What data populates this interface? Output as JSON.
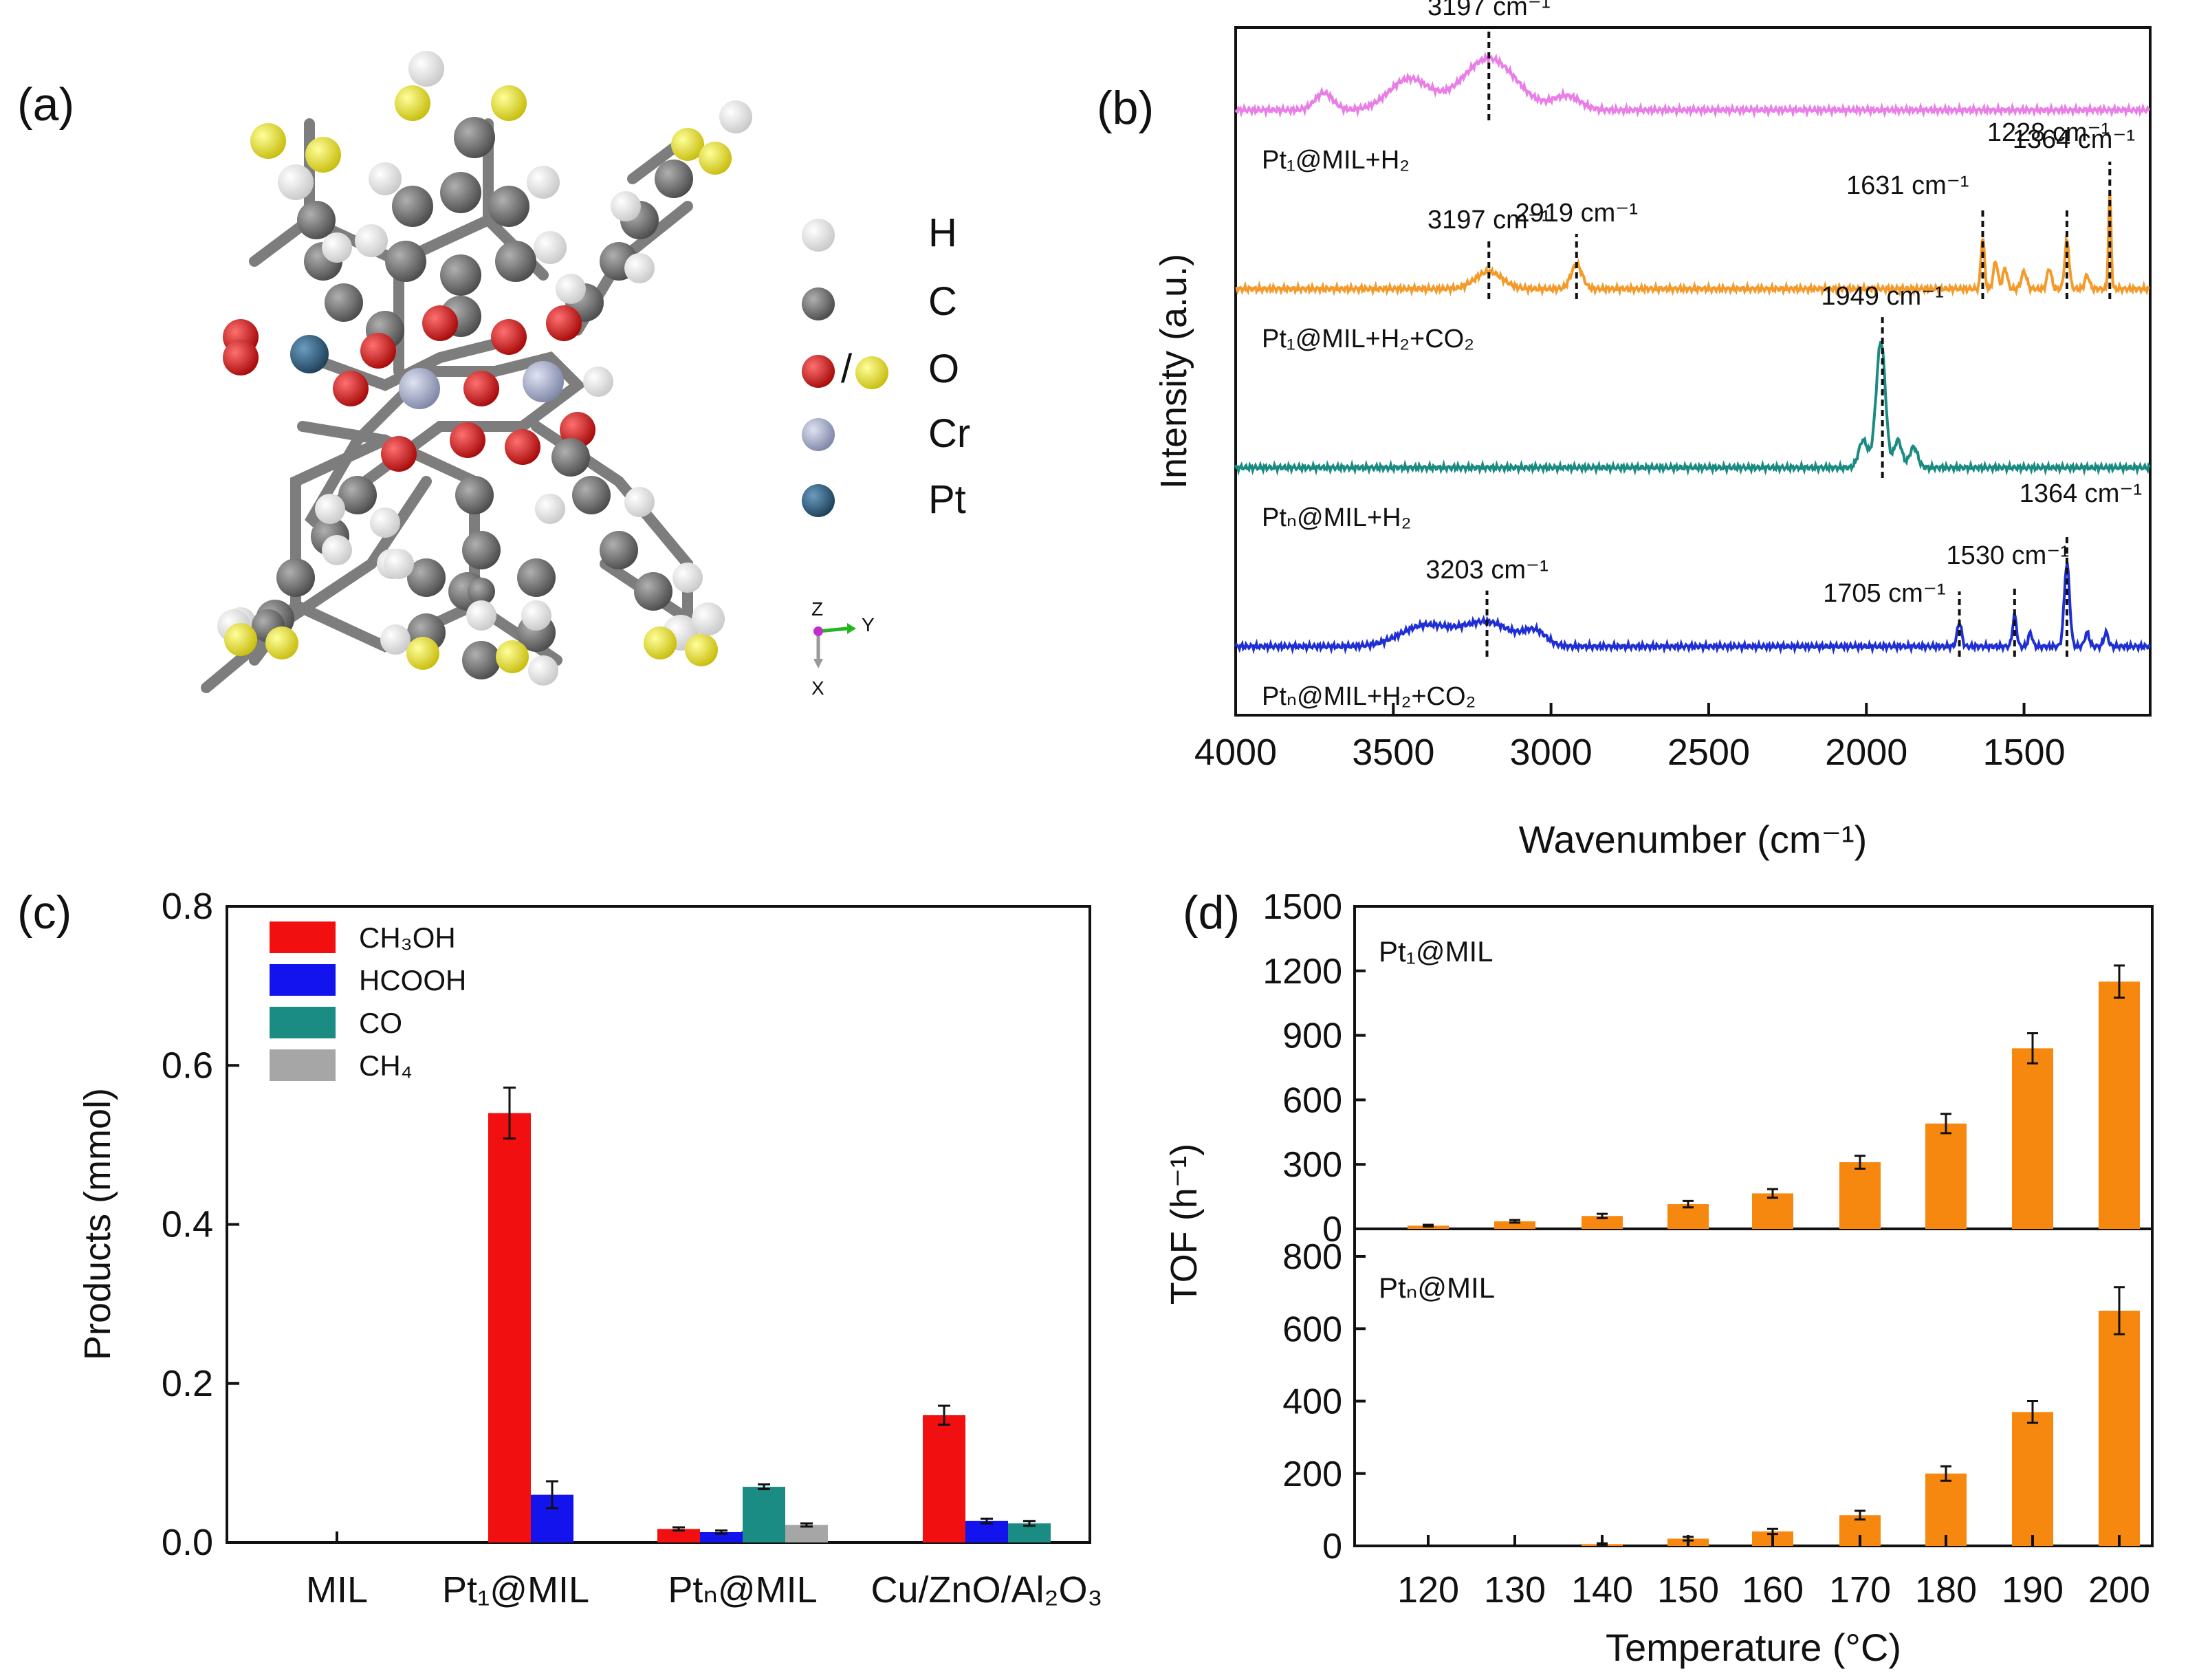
{
  "panels": {
    "a": {
      "letter": "(a)",
      "legend": [
        {
          "label": "H",
          "color": "#f2f2f2"
        },
        {
          "label": "C",
          "color": "#7a7a7a"
        },
        {
          "label": "O",
          "color": "#e3161b",
          "color2": "#f2e821",
          "sep": "/"
        },
        {
          "label": "Cr",
          "color": "#a7aec9"
        },
        {
          "label": "Pt",
          "color": "#2a5a7c"
        }
      ],
      "axes": {
        "z": "Z",
        "y": "Y",
        "x": "X"
      }
    },
    "b": {
      "letter": "(b)"
    },
    "c": {
      "letter": "(c)"
    },
    "d": {
      "letter": "(d)"
    }
  },
  "chart_data": [
    {
      "id": "b",
      "type": "line",
      "xlabel": "Wavenumber (cm⁻¹)",
      "ylabel": "Intensity (a.u.)",
      "xlim": [
        4000,
        1100
      ],
      "xticks": [
        4000,
        3500,
        3000,
        2500,
        2000,
        1500
      ],
      "series": [
        {
          "name": "Pt₁@MIL+H₂",
          "color": "#e87ee6",
          "offset": 0.88,
          "peaks": [
            [
              3720,
              0.025,
              40
            ],
            [
              3450,
              0.045,
              90
            ],
            [
              3197,
              0.075,
              120
            ],
            [
              2950,
              0.02,
              60
            ]
          ],
          "annotations": [
            {
              "x": 3197,
              "label": "3197 cm⁻¹"
            }
          ]
        },
        {
          "name": "Pt₁@MIL+H₂+CO₂",
          "color": "#f39a2a",
          "offset": 0.62,
          "peaks": [
            [
              3197,
              0.025,
              60
            ],
            [
              2919,
              0.035,
              25
            ],
            [
              1631,
              0.075,
              8
            ],
            [
              1590,
              0.04,
              10
            ],
            [
              1560,
              0.03,
              10
            ],
            [
              1500,
              0.025,
              12
            ],
            [
              1420,
              0.03,
              10
            ],
            [
              1364,
              0.07,
              10
            ],
            [
              1300,
              0.02,
              10
            ],
            [
              1228,
              0.14,
              6
            ]
          ],
          "annotations": [
            {
              "x": 3197,
              "label": "3197 cm⁻¹"
            },
            {
              "x": 2919,
              "label": "2919 cm⁻¹"
            },
            {
              "x": 1631,
              "label": "1631 cm⁻¹"
            },
            {
              "x": 1364,
              "label": "1364 cm⁻¹"
            },
            {
              "x": 1228,
              "label": "1228 cm⁻¹"
            }
          ]
        },
        {
          "name": "Ptₙ@MIL+H₂",
          "color": "#1a8b82",
          "offset": 0.36,
          "peaks": [
            [
              2010,
              0.04,
              20
            ],
            [
              1960,
              0.1,
              20
            ],
            [
              1949,
              0.1,
              18
            ],
            [
              1900,
              0.04,
              18
            ],
            [
              1850,
              0.03,
              18
            ]
          ],
          "annotations": [
            {
              "x": 1949,
              "label": "1949 cm⁻¹"
            }
          ]
        },
        {
          "name": "Ptₙ@MIL+H₂+CO₂",
          "color": "#1f2fd4",
          "offset": 0.1,
          "peaks": [
            [
              3400,
              0.03,
              110
            ],
            [
              3203,
              0.035,
              110
            ],
            [
              3050,
              0.02,
              50
            ],
            [
              1705,
              0.035,
              10
            ],
            [
              1530,
              0.045,
              9
            ],
            [
              1480,
              0.02,
              9
            ],
            [
              1364,
              0.12,
              12
            ],
            [
              1300,
              0.02,
              10
            ],
            [
              1240,
              0.02,
              10
            ]
          ],
          "annotations": [
            {
              "x": 3203,
              "label": "3203 cm⁻¹"
            },
            {
              "x": 1705,
              "label": "1705 cm⁻¹"
            },
            {
              "x": 1530,
              "label": "1530 cm⁻¹"
            },
            {
              "x": 1364,
              "label": "1364 cm⁻¹"
            }
          ]
        }
      ]
    },
    {
      "id": "c",
      "type": "bar",
      "ylabel": "Products (mmol)",
      "ylim": [
        0,
        0.8
      ],
      "yticks": [
        0.0,
        0.2,
        0.4,
        0.6,
        0.8
      ],
      "categories": [
        "MIL",
        "Pt₁@MIL",
        "Ptₙ@MIL",
        "Cu/ZnO/Al₂O₃"
      ],
      "series": [
        {
          "name": "CH₃OH",
          "color": "#f20f0f",
          "values": [
            0,
            0.54,
            0.017,
            0.16
          ],
          "errors": [
            0,
            0.032,
            0.002,
            0.012
          ]
        },
        {
          "name": "HCOOH",
          "color": "#1313ee",
          "values": [
            0,
            0.06,
            0.013,
            0.027
          ],
          "errors": [
            0,
            0.017,
            0.002,
            0.003
          ]
        },
        {
          "name": "CO",
          "color": "#1a8c84",
          "values": [
            0,
            0,
            0.07,
            0.024
          ],
          "errors": [
            0,
            0,
            0.003,
            0.003
          ]
        },
        {
          "name": "CH₄",
          "color": "#a6a6a6",
          "values": [
            0,
            0,
            0.022,
            0
          ],
          "errors": [
            0,
            0,
            0.002,
            0
          ]
        }
      ]
    },
    {
      "id": "d",
      "type": "bar",
      "xlabel": "Temperature (°C)",
      "ylabel": "TOF (h⁻¹)",
      "categories": [
        "120",
        "130",
        "140",
        "150",
        "160",
        "170",
        "180",
        "190",
        "200"
      ],
      "bar_color": "#f7880f",
      "subplots": [
        {
          "name": "Pt₁@MIL",
          "ylim": [
            0,
            1500
          ],
          "yticks": [
            0,
            300,
            600,
            900,
            1200,
            1500
          ],
          "values": [
            15,
            35,
            60,
            115,
            165,
            310,
            490,
            840,
            1150
          ],
          "errors": [
            4,
            6,
            10,
            15,
            20,
            30,
            45,
            70,
            75
          ]
        },
        {
          "name": "Ptₙ@MIL",
          "ylim": [
            0,
            800
          ],
          "yticks": [
            0,
            200,
            400,
            600,
            800
          ],
          "values": [
            0,
            0,
            5,
            20,
            40,
            85,
            200,
            370,
            650
          ],
          "errors": [
            0,
            0,
            2,
            5,
            7,
            12,
            20,
            30,
            65
          ]
        }
      ]
    }
  ]
}
